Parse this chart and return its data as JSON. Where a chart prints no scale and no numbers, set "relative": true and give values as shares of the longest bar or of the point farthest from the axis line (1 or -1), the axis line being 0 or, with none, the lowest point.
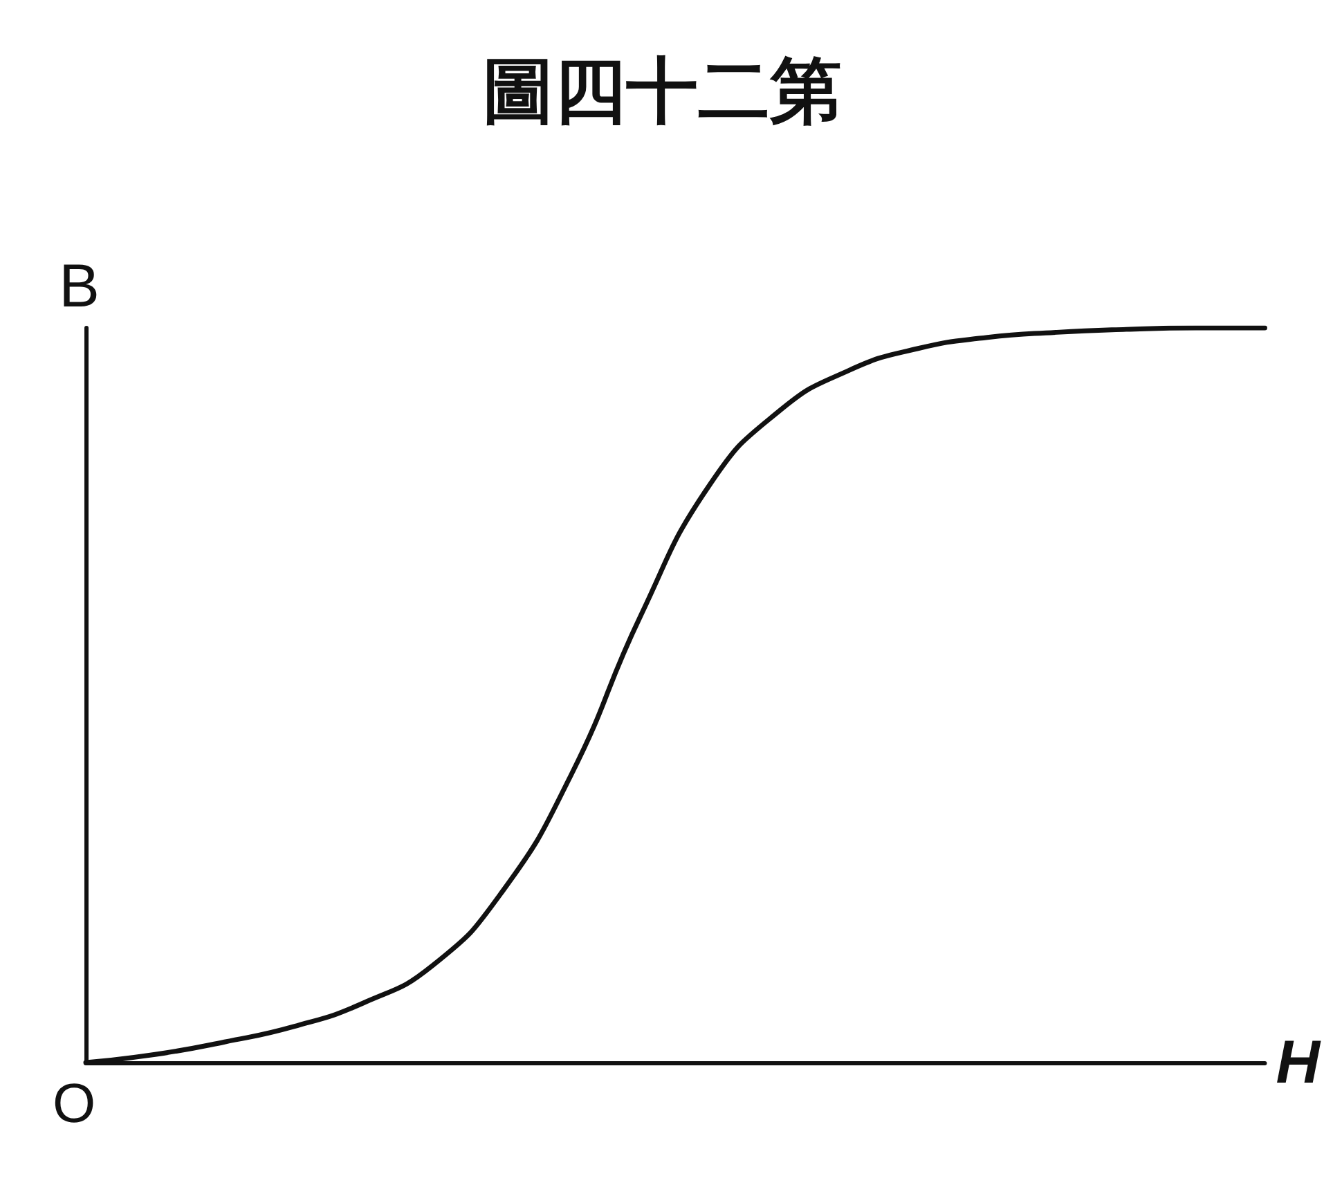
{
  "chart_data": {
    "type": "line",
    "title": "圖四十二第",
    "xlabel": "H",
    "ylabel": "B",
    "annotations": [
      "O"
    ],
    "relative": true,
    "grid": false,
    "marker": "none",
    "line_style": "solid",
    "categories": [
      null,
      null,
      null,
      null,
      null,
      null,
      null,
      null,
      null,
      null,
      null,
      null,
      null,
      null,
      null,
      null,
      null,
      null
    ],
    "series": [
      {
        "color": "#111111",
        "values": [
          0,
          0.011,
          0.028,
          0.049,
          0.081,
          0.132,
          0.232,
          0.392,
          0.608,
          0.787,
          0.887,
          0.942,
          0.972,
          0.987,
          0.994,
          0.998,
          1,
          1
        ]
      }
    ]
  }
}
